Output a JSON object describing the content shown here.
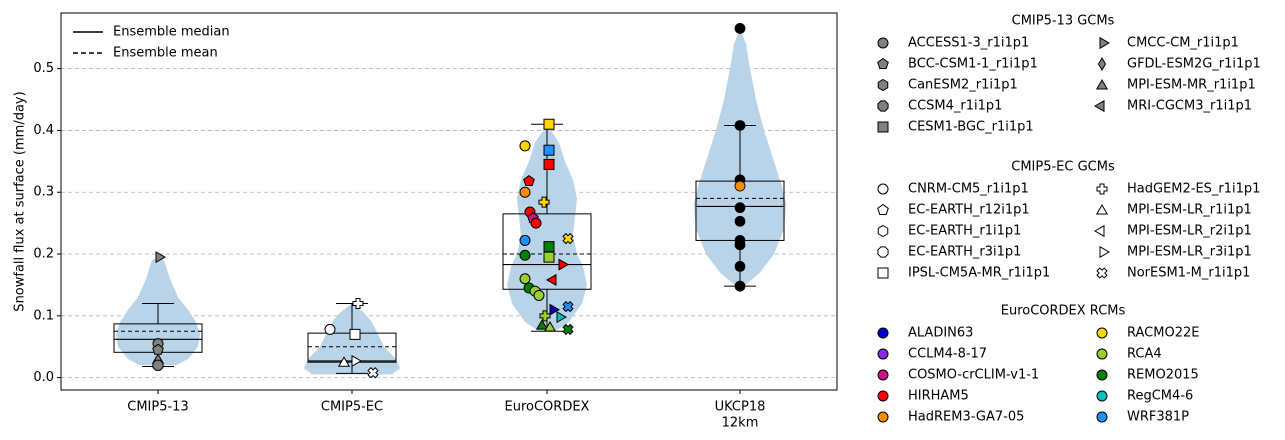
{
  "chart_data": {
    "type": "violin-box-scatter",
    "ylabel": "Snowfall flux at surface (mm/day)",
    "ylim": [
      -0.02,
      0.59
    ],
    "yticks": [
      0.0,
      0.1,
      0.2,
      0.3,
      0.4,
      0.5
    ],
    "ytick_labels": [
      "0.0",
      "0.1",
      "0.2",
      "0.3",
      "0.4",
      "0.5"
    ],
    "grid": "horizontal dashed",
    "categories": [
      {
        "label": "CMIP5-13",
        "sublabel": ""
      },
      {
        "label": "CMIP5-EC",
        "sublabel": ""
      },
      {
        "label": "EuroCORDEX",
        "sublabel": ""
      },
      {
        "label": "UKCP18",
        "sublabel": "12km"
      }
    ],
    "line_legend": [
      {
        "label": "Ensemble median",
        "style": "solid"
      },
      {
        "label": "Ensemble mean",
        "style": "dashed"
      }
    ],
    "groups": [
      {
        "name": "CMIP5-13",
        "q1": 0.041,
        "median": 0.062,
        "q3": 0.087,
        "mean": 0.075,
        "whisker_low": 0.018,
        "whisker_high": 0.12,
        "points": [
          {
            "model": "CMCC-CM_r1i1p1",
            "y": 0.195
          },
          {
            "model": "ACCESS1-3_r1i1p1",
            "y": 0.055
          },
          {
            "model": "MPI-ESM-MR_r1i1p1",
            "y": 0.03
          },
          {
            "model": "CCSM4_r1i1p1",
            "y": 0.02
          },
          {
            "model": "BCC-CSM1-1_r1i1p1",
            "y": 0.045
          }
        ]
      },
      {
        "name": "CMIP5-EC",
        "q1": 0.025,
        "median": 0.027,
        "q3": 0.072,
        "mean": 0.05,
        "whisker_low": 0.007,
        "whisker_high": 0.12,
        "points": [
          {
            "model": "HadGEM2-ES_r1i1p1",
            "y": 0.12
          },
          {
            "model": "CNRM-CM5_r1i1p1",
            "y": 0.078
          },
          {
            "model": "IPSL-CM5A-MR_r1i1p1",
            "y": 0.07
          },
          {
            "model": "MPI-ESM-LR_r3i1p1",
            "y": 0.027
          },
          {
            "model": "MPI-ESM-LR_r1i1p1",
            "y": 0.025
          },
          {
            "model": "NorESM1-M_r1i1p1",
            "y": 0.008
          }
        ]
      },
      {
        "name": "EuroCORDEX",
        "q1": 0.143,
        "median": 0.183,
        "q3": 0.265,
        "mean": 0.2,
        "whisker_low": 0.075,
        "whisker_high": 0.41,
        "points": [
          {
            "rcm": "RACMO22E",
            "y": 0.41
          },
          {
            "rcm": "WRF381P",
            "y": 0.368
          },
          {
            "rcm": "HIRHAM5",
            "y": 0.345
          },
          {
            "rcm": "RACMO22E",
            "y": 0.375
          },
          {
            "rcm": "HIRHAM5",
            "y": 0.318
          },
          {
            "rcm": "HadREM3-GA7-05",
            "y": 0.3
          },
          {
            "rcm": "RACMO22E",
            "y": 0.284
          },
          {
            "rcm": "HIRHAM5",
            "y": 0.268
          },
          {
            "rcm": "COSMO-crCLIM-v1-1",
            "y": 0.258
          },
          {
            "rcm": "HIRHAM5",
            "y": 0.25
          },
          {
            "rcm": "WRF381P",
            "y": 0.222
          },
          {
            "rcm": "RACMO22E",
            "y": 0.225
          },
          {
            "rcm": "REMO2015",
            "y": 0.212
          },
          {
            "rcm": "REMO2015",
            "y": 0.198
          },
          {
            "rcm": "RCA4",
            "y": 0.195
          },
          {
            "rcm": "HIRHAM5",
            "y": 0.183
          },
          {
            "rcm": "RCA4",
            "y": 0.16
          },
          {
            "rcm": "HIRHAM5",
            "y": 0.158
          },
          {
            "rcm": "REMO2015",
            "y": 0.145
          },
          {
            "rcm": "RCA4",
            "y": 0.14
          },
          {
            "rcm": "RCA4",
            "y": 0.133
          },
          {
            "rcm": "WRF381P",
            "y": 0.115
          },
          {
            "rcm": "ALADIN63",
            "y": 0.11
          },
          {
            "rcm": "RCA4",
            "y": 0.1
          },
          {
            "rcm": "RegCM4-6",
            "y": 0.098
          },
          {
            "rcm": "REMO2015",
            "y": 0.085
          },
          {
            "rcm": "RCA4",
            "y": 0.082
          },
          {
            "rcm": "REMO2015",
            "y": 0.078
          }
        ]
      },
      {
        "name": "UKCP18",
        "q1": 0.222,
        "median": 0.277,
        "q3": 0.318,
        "mean": 0.29,
        "whisker_low": 0.148,
        "whisker_high": 0.408,
        "points": [
          {
            "y": 0.565
          },
          {
            "y": 0.408
          },
          {
            "y": 0.32
          },
          {
            "y": 0.31
          },
          {
            "y": 0.275
          },
          {
            "y": 0.253
          },
          {
            "y": 0.222
          },
          {
            "y": 0.215
          },
          {
            "y": 0.18
          },
          {
            "y": 0.148
          }
        ]
      }
    ],
    "legend": [
      {
        "title": "CMIP5-13 GCMs",
        "columns": [
          [
            "ACCESS1-3_r1i1p1",
            "BCC-CSM1-1_r1i1p1",
            "CanESM2_r1i1p1",
            "CCSM4_r1i1p1",
            "CESM1-BGC_r1i1p1"
          ],
          [
            "CMCC-CM_r1i1p1",
            "GFDL-ESM2G_r1i1p1",
            "MPI-ESM-MR_r1i1p1",
            "MRI-CGCM3_r1i1p1"
          ]
        ],
        "markers": [
          [
            "circle",
            "pentagon",
            "hexagon",
            "octagon",
            "square"
          ],
          [
            "tri-right",
            "thin-diamond",
            "tri-up",
            "tri-left"
          ]
        ],
        "color": "#808080"
      },
      {
        "title": "CMIP5-EC GCMs",
        "columns": [
          [
            "CNRM-CM5_r1i1p1",
            "EC-EARTH_r12i1p1",
            "EC-EARTH_r1i1p1",
            "EC-EARTH_r3i1p1",
            "IPSL-CM5A-MR_r1i1p1"
          ],
          [
            "HadGEM2-ES_r1i1p1",
            "MPI-ESM-LR_r1i1p1",
            "MPI-ESM-LR_r2i1p1",
            "MPI-ESM-LR_r3i1p1",
            "NorESM1-M_r1i1p1"
          ]
        ],
        "markers": [
          [
            "circle",
            "pentagon",
            "hexagon",
            "octagon",
            "square"
          ],
          [
            "plus",
            "tri-up",
            "tri-left",
            "tri-right",
            "x-cross"
          ]
        ],
        "color": "#ffffff"
      },
      {
        "title": "EuroCORDEX RCMs",
        "columns": [
          [
            "ALADIN63",
            "CCLM4-8-17",
            "COSMO-crCLIM-v1-1",
            "HIRHAM5",
            "HadREM3-GA7-05"
          ],
          [
            "RACMO22E",
            "RCA4",
            "REMO2015",
            "RegCM4-6",
            "WRF381P"
          ]
        ],
        "colors": [
          [
            "#0000cc",
            "#8a2be2",
            "#c71585",
            "#ff0000",
            "#ff8c00"
          ],
          [
            "#ffd700",
            "#9acd32",
            "#008000",
            "#00bfbf",
            "#1e90ff"
          ]
        ]
      }
    ],
    "colors": {
      "violin": "#b9d4e8",
      "grid": "#b0b0b0",
      "ukcp_point": "#000000",
      "ukcp_highlight": "#ff8c00"
    }
  }
}
